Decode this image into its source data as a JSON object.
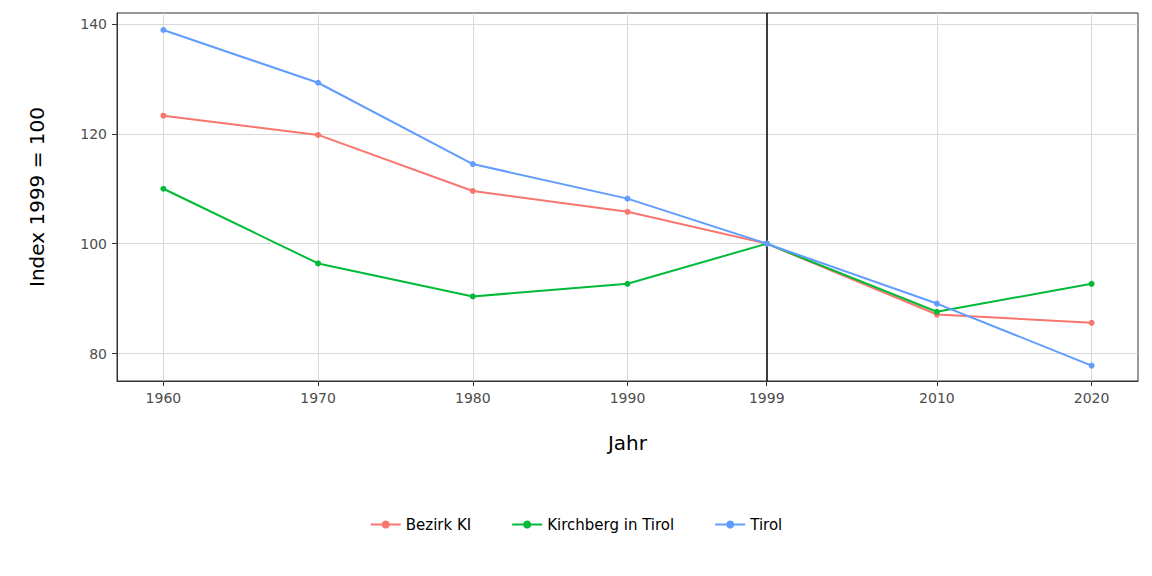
{
  "chart_data": {
    "type": "line",
    "x_label": "Jahr",
    "y_label": "Index 1999 = 100",
    "x": [
      1960,
      1970,
      1980,
      1990,
      1999,
      2010,
      2020
    ],
    "series": [
      {
        "name": "Bezirk KI",
        "color": "#F8766D",
        "values": [
          123.3,
          119.8,
          109.6,
          105.8,
          100,
          87.1,
          85.6
        ]
      },
      {
        "name": "Kirchberg in Tirol",
        "color": "#00BA38",
        "values": [
          110.0,
          96.4,
          90.4,
          92.7,
          100,
          87.6,
          92.7
        ]
      },
      {
        "name": "Tirol",
        "color": "#619CFF",
        "values": [
          138.9,
          129.3,
          114.5,
          108.2,
          100,
          89.1,
          77.8
        ]
      }
    ],
    "xlim": [
      1957,
      2023
    ],
    "xticks": [
      1960,
      1970,
      1980,
      1990,
      1999,
      2010,
      2020
    ],
    "ylim": [
      75,
      142
    ],
    "yticks": [
      80,
      100,
      120,
      140
    ],
    "vline": 1999,
    "grid": true,
    "legend": "bottom",
    "marker": "circle"
  }
}
